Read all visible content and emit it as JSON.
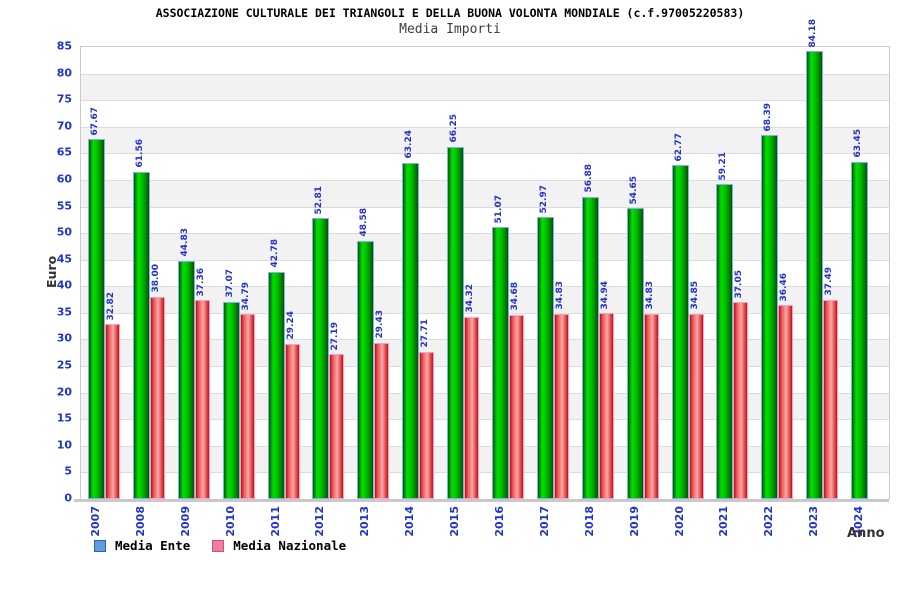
{
  "title": "ASSOCIAZIONE CULTURALE DEI TRIANGOLI E DELLA BUONA VOLONTA MONDIALE (c.f.97005220583)",
  "subtitle": "Media Importi",
  "chart_data": {
    "type": "bar",
    "categories": [
      "2007",
      "2008",
      "2009",
      "2010",
      "2011",
      "2012",
      "2013",
      "2014",
      "2015",
      "2016",
      "2017",
      "2018",
      "2019",
      "2020",
      "2021",
      "2022",
      "2023",
      "2024"
    ],
    "series": [
      {
        "name": "Media Ente",
        "values": [
          67.67,
          61.56,
          44.83,
          37.07,
          42.78,
          52.81,
          48.58,
          63.24,
          66.25,
          51.07,
          52.97,
          56.88,
          54.65,
          62.77,
          59.21,
          68.39,
          84.18,
          63.45
        ],
        "bar_color": "#00c800",
        "legend_marker_color": "#5f9ddb",
        "legend_marker_border": "#2f62a0"
      },
      {
        "name": "Media Nazionale",
        "values": [
          32.82,
          38.0,
          37.36,
          34.79,
          29.24,
          27.19,
          29.43,
          27.71,
          34.32,
          34.68,
          34.83,
          34.94,
          34.83,
          34.85,
          37.05,
          36.46,
          37.49,
          null
        ],
        "bar_color": "#e83030",
        "legend_marker_color": "#f07ca6",
        "legend_marker_border": "#cf4f80"
      }
    ],
    "xlabel": "Anno",
    "ylabel": "Euro",
    "ylim": [
      0,
      85
    ],
    "ytick_step": 5,
    "value_label_decimals": 2,
    "label_color": "#2233cc",
    "grid": "horizontal",
    "legend_position": "bottom-left"
  }
}
